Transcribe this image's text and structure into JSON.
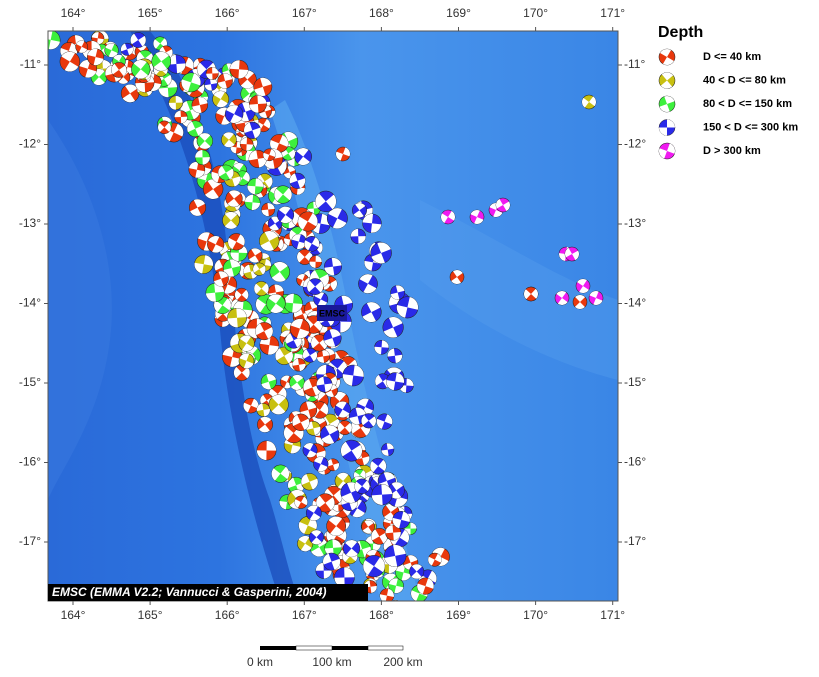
{
  "map": {
    "legend": {
      "title": "Depth",
      "items": [
        {
          "label": "D <= 40 km",
          "color": "#e8380d"
        },
        {
          "label": "40 < D <= 80 km",
          "color": "#c8c010"
        },
        {
          "label": "80 < D <= 150 km",
          "color": "#3df03d"
        },
        {
          "label": "150 < D <= 300 km",
          "color": "#2a2ae8"
        },
        {
          "label": "D > 300 km",
          "color": "#f01af0"
        }
      ]
    },
    "lon_ticks": [
      "164°",
      "165°",
      "166°",
      "167°",
      "168°",
      "169°",
      "170°",
      "171°"
    ],
    "lat_ticks": [
      "-11°",
      "-12°",
      "-13°",
      "-14°",
      "-15°",
      "-16°",
      "-17°"
    ],
    "credit": "EMSC (EMMA V2.2; Vannucci & Gasperini, 2004)",
    "marker_label": "EMSC",
    "scale_labels": [
      "0 km",
      "100 km",
      "200 km"
    ]
  }
}
